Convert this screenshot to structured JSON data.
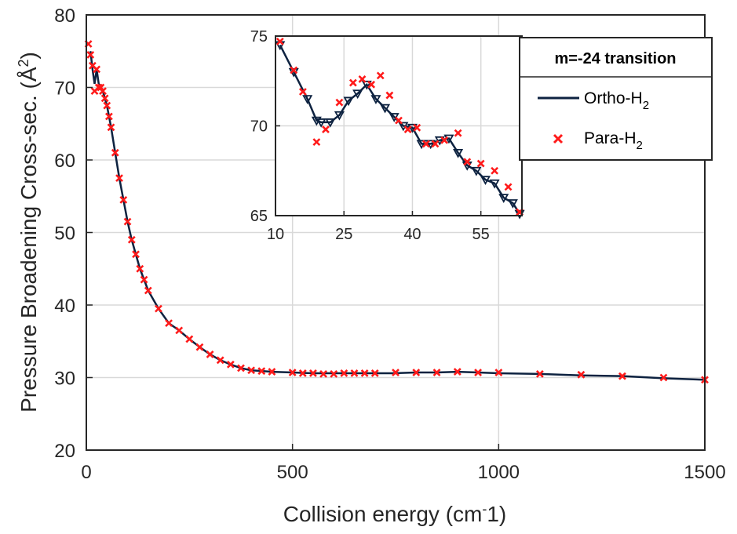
{
  "colors": {
    "line": "#0d2240",
    "marker": "#ff1a1a",
    "grid": "#d9d9d9",
    "axis": "#262626"
  },
  "chart_data": [
    {
      "type": "line",
      "xlabel": "Collision energy (cm",
      "xlabel_sup": "-",
      "xlabel_tail": "1)",
      "ylabel": "Pressure Broadening Cross-sec. (Å",
      "ylabel_sup": "2",
      "ylabel_tail": ")",
      "xlim": [
        0,
        1500
      ],
      "ylim": [
        20,
        80
      ],
      "xticks": [
        "0",
        "500",
        "1000",
        "1500"
      ],
      "yticks": [
        "20",
        "30",
        "40",
        "50",
        "60",
        "70",
        "80"
      ],
      "grid": true,
      "legend_position": "top-right",
      "series": [
        {
          "name": "Ortho-H2",
          "style": "solid line",
          "x": [
            10,
            15,
            20,
            25,
            30,
            35,
            40,
            45,
            50,
            55,
            60,
            70,
            80,
            90,
            100,
            110,
            120,
            130,
            140,
            150,
            175,
            200,
            225,
            250,
            275,
            300,
            325,
            350,
            375,
            400,
            425,
            450,
            500,
            550,
            600,
            650,
            700,
            750,
            800,
            850,
            900,
            950,
            1000,
            1100,
            1200,
            1300,
            1400,
            1500
          ],
          "y": [
            75.0,
            72.5,
            70.5,
            72.5,
            70.5,
            70.0,
            69.5,
            68.5,
            67.5,
            66.0,
            64.5,
            61.0,
            57.5,
            54.5,
            51.5,
            49.0,
            47.0,
            45.0,
            43.5,
            42.0,
            39.5,
            37.5,
            36.5,
            35.3,
            34.2,
            33.2,
            32.4,
            31.8,
            31.3,
            31.0,
            30.9,
            30.8,
            30.7,
            30.6,
            30.6,
            30.6,
            30.6,
            30.6,
            30.7,
            30.7,
            30.8,
            30.7,
            30.6,
            30.5,
            30.3,
            30.2,
            29.9,
            29.7
          ]
        },
        {
          "name": "Para-H2",
          "style": "x markers",
          "x": [
            5,
            10,
            15,
            20,
            25,
            30,
            35,
            40,
            45,
            50,
            55,
            60,
            70,
            80,
            90,
            100,
            110,
            120,
            130,
            140,
            150,
            175,
            200,
            225,
            250,
            275,
            300,
            325,
            350,
            375,
            400,
            425,
            450,
            500,
            525,
            550,
            575,
            600,
            625,
            650,
            675,
            700,
            750,
            800,
            850,
            900,
            950,
            1000,
            1100,
            1200,
            1300,
            1400,
            1500
          ],
          "y": [
            76.0,
            74.5,
            73.0,
            69.5,
            72.5,
            70.0,
            70.0,
            69.5,
            68.5,
            67.5,
            66.0,
            64.5,
            61.0,
            57.5,
            54.5,
            51.5,
            49.0,
            47.0,
            45.0,
            43.5,
            42.0,
            39.5,
            37.5,
            36.5,
            35.3,
            34.2,
            33.2,
            32.4,
            31.8,
            31.3,
            31.0,
            30.9,
            30.8,
            30.7,
            30.6,
            30.6,
            30.5,
            30.5,
            30.6,
            30.6,
            30.6,
            30.6,
            30.7,
            30.7,
            30.7,
            30.8,
            30.7,
            30.7,
            30.5,
            30.4,
            30.2,
            30.0,
            29.7
          ]
        }
      ]
    },
    {
      "type": "line",
      "role": "inset",
      "xlim": [
        10,
        64
      ],
      "ylim": [
        65,
        75
      ],
      "xticks": [
        "10",
        "25",
        "40",
        "55"
      ],
      "yticks": [
        "65",
        "70",
        "75"
      ],
      "grid": true,
      "legend_title": "m=-24 transition",
      "series": [
        {
          "name": "Ortho-H2",
          "style": "solid line with triangle markers",
          "x": [
            11,
            14,
            17,
            19,
            20,
            22,
            24,
            26,
            28,
            30,
            32,
            34,
            36,
            38,
            40,
            42,
            44,
            46,
            48,
            50,
            52,
            54,
            56,
            58,
            60,
            62,
            63.5
          ],
          "y": [
            74.5,
            73.0,
            71.5,
            70.3,
            70.2,
            70.2,
            70.6,
            71.4,
            71.8,
            72.3,
            71.5,
            71.0,
            70.5,
            70.0,
            69.9,
            69.0,
            69.0,
            69.2,
            69.3,
            68.5,
            67.8,
            67.5,
            67.0,
            66.8,
            66.0,
            65.7,
            65.1
          ]
        },
        {
          "name": "Para-H2",
          "style": "x markers",
          "x": [
            11,
            14,
            16,
            19,
            21,
            24,
            27,
            29,
            31,
            33,
            35,
            37,
            39,
            41,
            43,
            45,
            47,
            50,
            52,
            55,
            58,
            61,
            63.5
          ],
          "y": [
            74.7,
            73.1,
            71.9,
            69.1,
            69.8,
            71.3,
            72.4,
            72.6,
            72.3,
            72.8,
            71.7,
            70.3,
            69.8,
            69.9,
            69.0,
            69.0,
            69.2,
            69.6,
            68.0,
            67.9,
            67.5,
            66.6,
            65.2
          ]
        }
      ]
    }
  ],
  "legend": {
    "title": "m=-24 transition",
    "entries": [
      {
        "label": "Ortho-H",
        "sub": "2"
      },
      {
        "label": "Para-H",
        "sub": "2"
      }
    ]
  }
}
